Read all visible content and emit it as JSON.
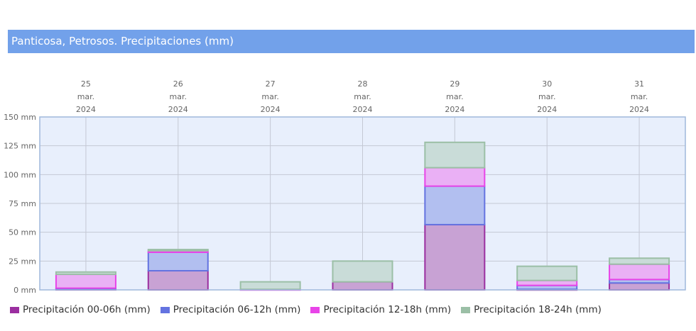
{
  "title": "Panticosa, Petrosos. Precipitaciones (mm)",
  "chart_data": {
    "type": "bar",
    "stacked": true,
    "categories": [
      [
        "25",
        "mar.",
        "2024"
      ],
      [
        "26",
        "mar.",
        "2024"
      ],
      [
        "27",
        "mar.",
        "2024"
      ],
      [
        "28",
        "mar.",
        "2024"
      ],
      [
        "29",
        "mar.",
        "2024"
      ],
      [
        "30",
        "mar.",
        "2024"
      ],
      [
        "31",
        "mar.",
        "2024"
      ]
    ],
    "ylim": [
      0,
      150
    ],
    "yticks": [
      0,
      25,
      50,
      75,
      100,
      125,
      150
    ],
    "ytick_suffix": " mm",
    "grid": true,
    "legend_position": "bottom-left",
    "series": [
      {
        "name": "Precipitación 00-06h (mm)",
        "color": "#9b2fa0",
        "fill": "#c8a2d4",
        "values": [
          1,
          16.6,
          0,
          7,
          56.6,
          0.5,
          6
        ]
      },
      {
        "name": "Precipitación 06-12h (mm)",
        "color": "#6473e0",
        "fill": "#b2bff0",
        "values": [
          0.5,
          16,
          0,
          0,
          33.4,
          3.4,
          3
        ]
      },
      {
        "name": "Precipitación 12-18h (mm)",
        "color": "#e844e8",
        "fill": "#eab0f5",
        "values": [
          12,
          1.4,
          0.5,
          0,
          16,
          4.3,
          13.3
        ]
      },
      {
        "name": "Precipitación 18-24h (mm)",
        "color": "#9bbfa6",
        "fill": "#c9dcd8",
        "values": [
          2,
          1,
          6.5,
          18,
          22,
          12.3,
          5.2
        ]
      }
    ]
  }
}
